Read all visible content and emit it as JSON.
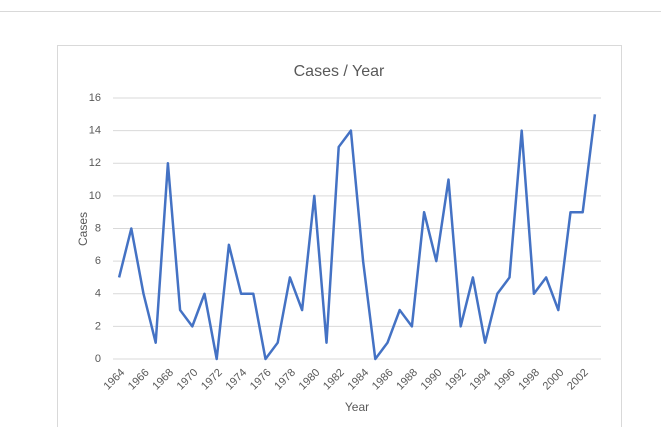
{
  "chart_data": {
    "type": "line",
    "title": "Cases / Year",
    "x_label": "Year",
    "y_label": "Cases",
    "categories": [
      "1964",
      null,
      "1966",
      null,
      "1968",
      null,
      "1970",
      null,
      "1972",
      null,
      "1974",
      null,
      "1976",
      null,
      "1978",
      null,
      "1980",
      null,
      "1982",
      null,
      "1984",
      null,
      "1986",
      null,
      "1988",
      null,
      "1990",
      null,
      "1992",
      null,
      "1994",
      null,
      "1996",
      null,
      "1998",
      null,
      "2000",
      null,
      "2002",
      null
    ],
    "series": [
      {
        "name": "Cases",
        "color": "#4472c4",
        "values": [
          5,
          8,
          4,
          1,
          12,
          3,
          2,
          4,
          0,
          7,
          4,
          4,
          0,
          1,
          5,
          3,
          10,
          1,
          13,
          14,
          6,
          0,
          1,
          3,
          2,
          9,
          6,
          11,
          2,
          5,
          1,
          4,
          5,
          14,
          4,
          5,
          3,
          9,
          9,
          15
        ]
      }
    ],
    "ylim": [
      0,
      16
    ],
    "yticks": [
      0,
      2,
      4,
      6,
      8,
      10,
      12,
      14,
      16
    ],
    "grid": true
  }
}
